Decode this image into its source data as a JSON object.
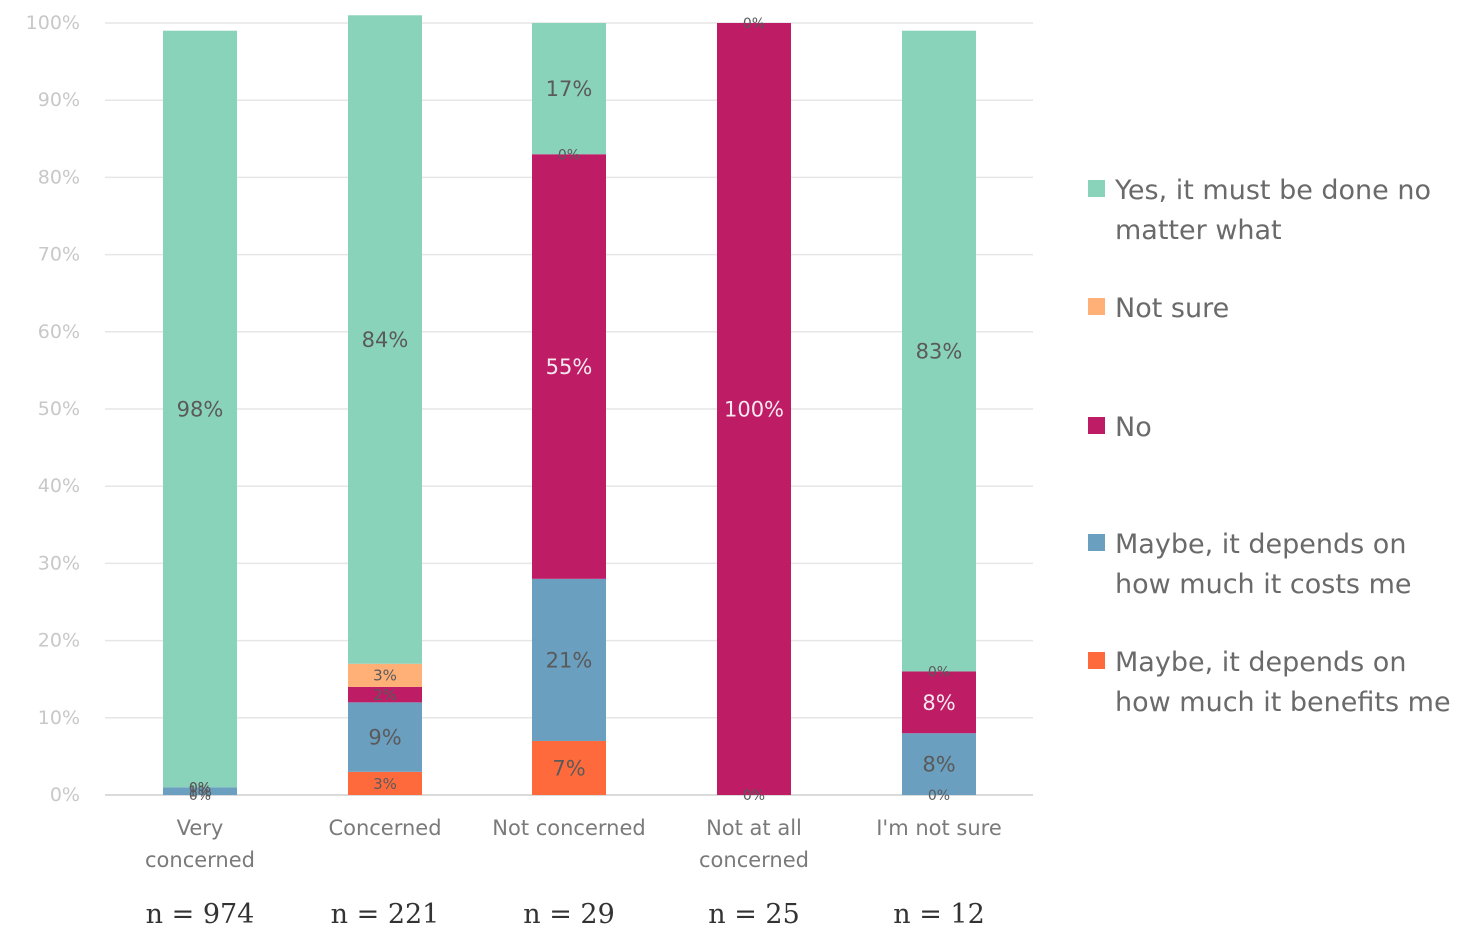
{
  "chart_data": {
    "type": "bar",
    "stacked": true,
    "categories": [
      [
        "Very",
        "concerned"
      ],
      [
        "Concerned"
      ],
      [
        "Not concerned"
      ],
      [
        "Not at all",
        "concerned"
      ],
      [
        "I'm not sure"
      ]
    ],
    "counts": [
      "n = 974",
      "n = 221",
      "n = 29",
      "n = 25",
      "n = 12"
    ],
    "ylim": [
      0,
      100
    ],
    "yticks": [
      "0%",
      "10%",
      "20%",
      "30%",
      "40%",
      "50%",
      "60%",
      "70%",
      "80%",
      "90%",
      "100%"
    ],
    "grid": true,
    "legend_position": "right",
    "series": [
      {
        "name": "Maybe, it depends on how much it benefits me",
        "legend_lines": [
          "Maybe, it depends on",
          "how much it benefits me"
        ],
        "color": "#ff6a3d",
        "values": [
          0,
          3,
          7,
          0,
          0
        ],
        "labels": [
          "0%",
          "3%",
          "7%",
          "0%",
          "0%"
        ]
      },
      {
        "name": "Maybe, it depends on how much it costs me",
        "legend_lines": [
          "Maybe, it depends on",
          "how much it costs me"
        ],
        "color": "#6a9fc0",
        "values": [
          1,
          9,
          21,
          0,
          8
        ],
        "labels": [
          "1%",
          "9%",
          "21%",
          "",
          "8%"
        ]
      },
      {
        "name": "No",
        "legend_lines": [
          "No"
        ],
        "color": "#bf1c66",
        "values": [
          0,
          2,
          55,
          100,
          8
        ],
        "labels": [
          "0%",
          "2%",
          "55%",
          "100%",
          "8%"
        ]
      },
      {
        "name": "Not sure",
        "legend_lines": [
          "Not sure"
        ],
        "color": "#ffb077",
        "values": [
          0,
          3,
          0,
          0,
          0
        ],
        "labels": [
          "0%",
          "3%",
          "0%",
          "0%",
          "0%"
        ]
      },
      {
        "name": "Yes, it must be done no matter what",
        "legend_lines": [
          "Yes, it must be done no",
          "matter what"
        ],
        "color": "#8ad3bb",
        "values": [
          98,
          84,
          17,
          0,
          83
        ],
        "labels": [
          "98%",
          "84%",
          "17%",
          "",
          "83%"
        ]
      }
    ],
    "legend_order": [
      4,
      3,
      2,
      1,
      0
    ]
  }
}
